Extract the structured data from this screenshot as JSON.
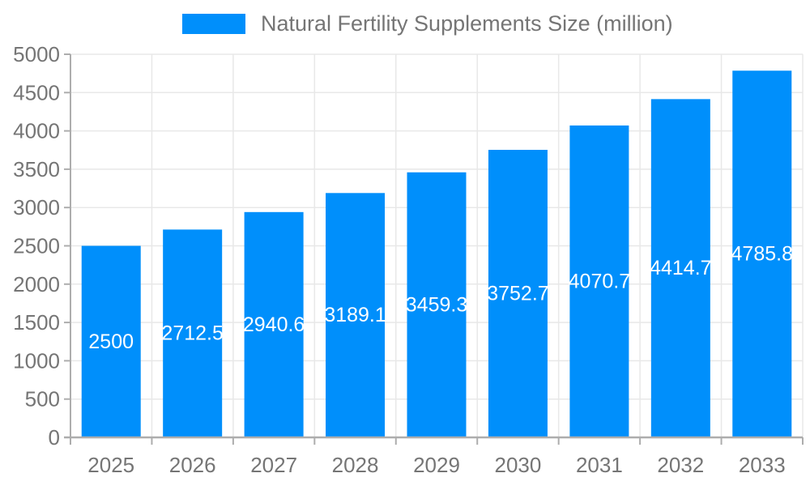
{
  "legend": {
    "label": "Natural Fertility Supplements Size (million)"
  },
  "chart_data": {
    "type": "bar",
    "title": "Natural Fertility Supplements Size (million)",
    "series_name": "Natural Fertility Supplements Size (million)",
    "categories": [
      "2025",
      "2026",
      "2027",
      "2028",
      "2029",
      "2030",
      "2031",
      "2032",
      "2033"
    ],
    "values": [
      2500,
      2712.5,
      2940.6,
      3189.1,
      3459.3,
      3752.7,
      4070.7,
      4414.7,
      4785.8
    ],
    "value_labels": [
      "2500",
      "2712.5",
      "2940.6",
      "3189.1",
      "3459.3",
      "3752.7",
      "4070.7",
      "4414.7",
      "4785.8"
    ],
    "y_tick_labels": [
      "0",
      "500",
      "1000",
      "1500",
      "2000",
      "2500",
      "3000",
      "3500",
      "4000",
      "4500",
      "5000"
    ],
    "xlabel": "",
    "ylabel": "",
    "ylim": [
      0,
      5000
    ],
    "ytick_step": 500,
    "grid": true,
    "legend_position": "top",
    "colors": {
      "bar": "#008FFB",
      "bar_value_text": "#FFFFFF",
      "axis_text": "#757575",
      "legend_text": "#757575",
      "grid_line": "#e8e8e8",
      "axis_line": "#adadad",
      "background": "#FFFFFF"
    }
  }
}
